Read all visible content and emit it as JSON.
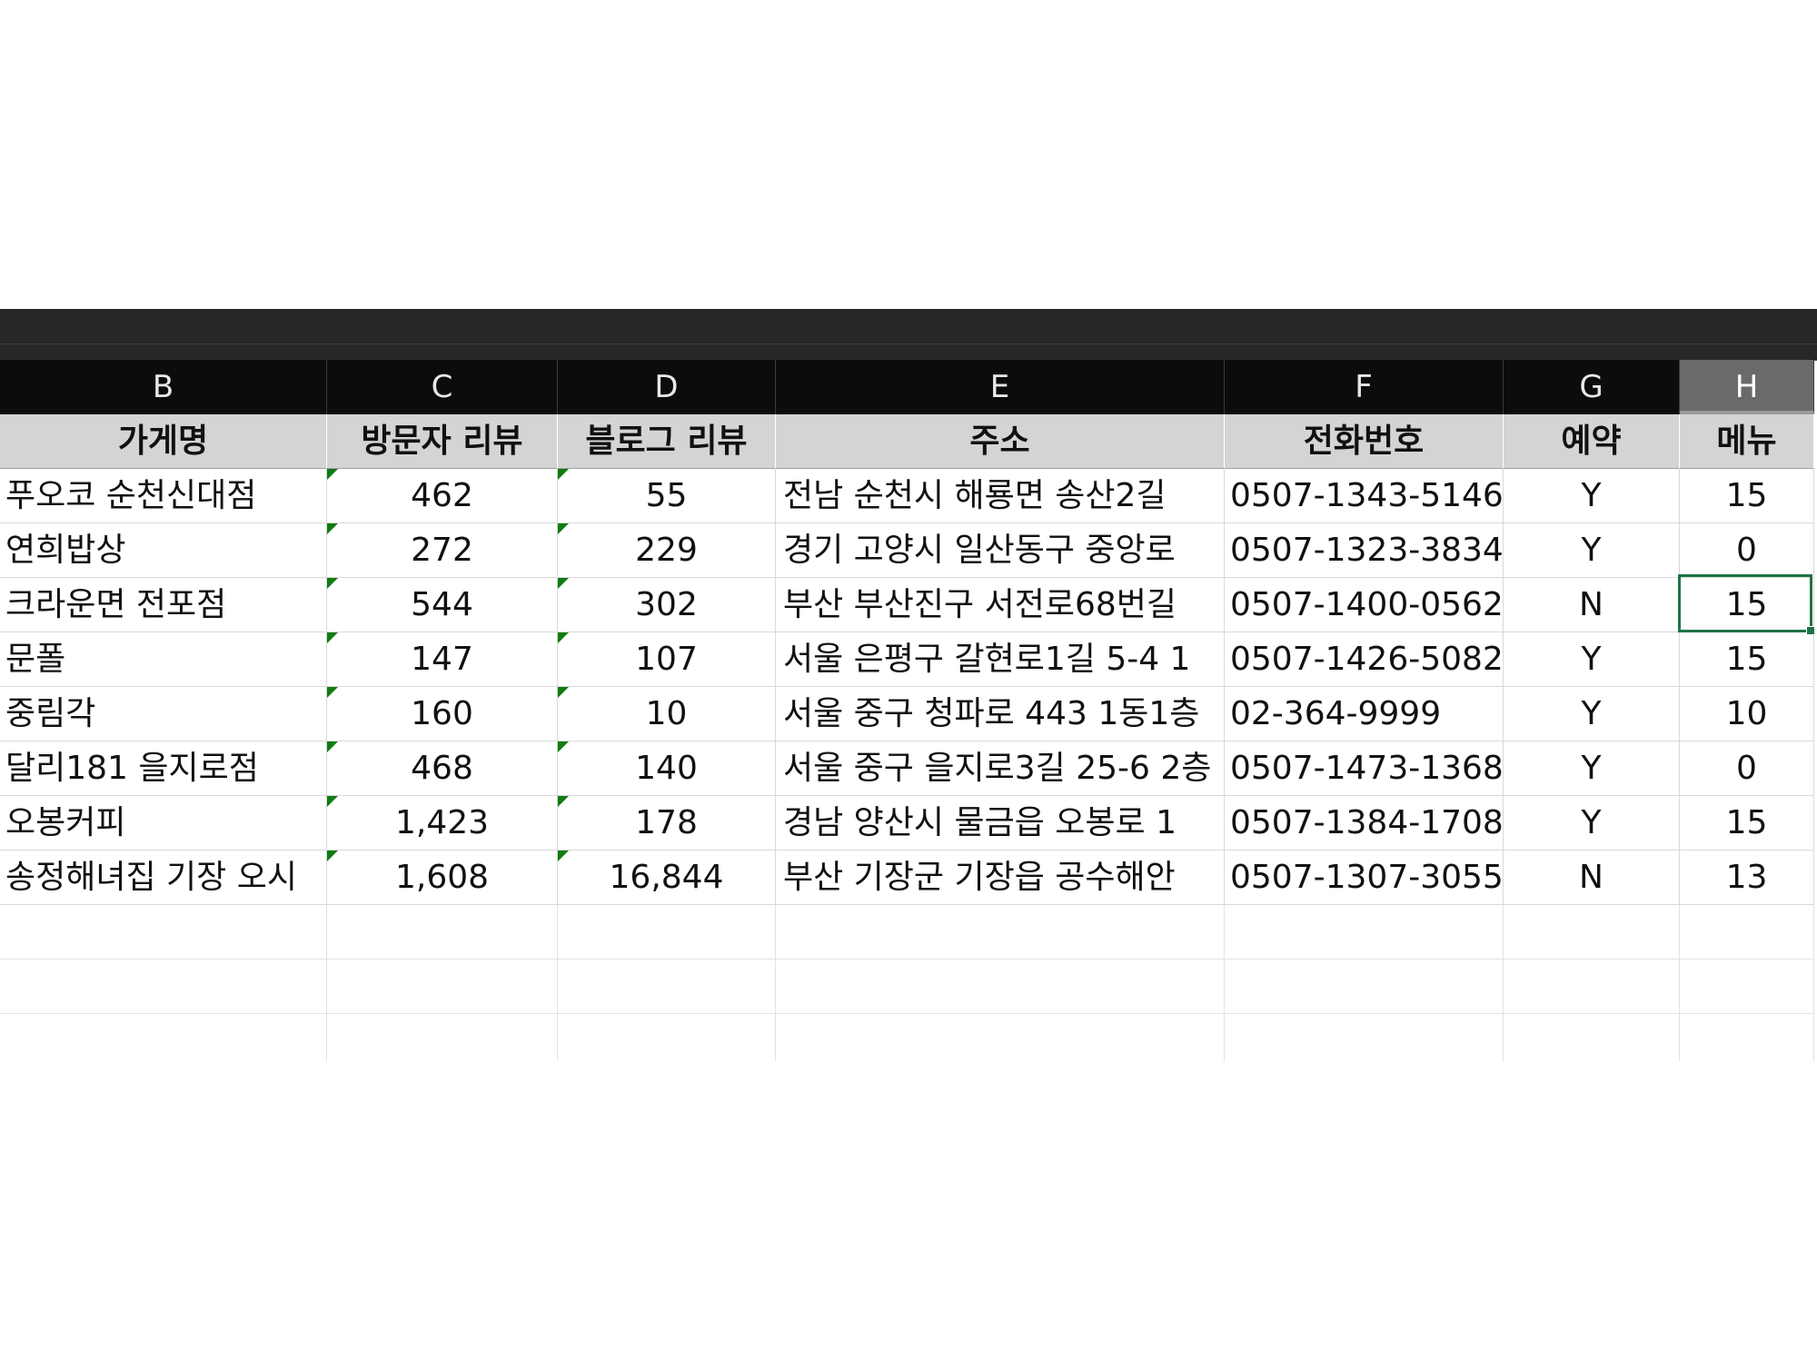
{
  "columns": [
    "B",
    "C",
    "D",
    "E",
    "F",
    "G",
    "H"
  ],
  "selected_column": "H",
  "headers": [
    "가게명",
    "방문자 리뷰",
    "블로그 리뷰",
    "주소",
    "전화번호",
    "예약",
    "메뉴"
  ],
  "rows": [
    {
      "name": "푸오코 순천신대점",
      "visitor": "462",
      "blog": "55",
      "address": "전남 순천시 해룡면 송산2길",
      "phone": "0507-1343-5146",
      "reservation": "Y",
      "menu": "15"
    },
    {
      "name": "연희밥상",
      "visitor": "272",
      "blog": "229",
      "address": "경기 고양시 일산동구 중앙로",
      "phone": "0507-1323-3834",
      "reservation": "Y",
      "menu": "0"
    },
    {
      "name": "크라운면 전포점",
      "visitor": "544",
      "blog": "302",
      "address": "부산 부산진구 서전로68번길",
      "phone": "0507-1400-0562",
      "reservation": "N",
      "menu": "15"
    },
    {
      "name": "문폴",
      "visitor": "147",
      "blog": "107",
      "address": "서울 은평구 갈현로1길 5-4 1",
      "phone": "0507-1426-5082",
      "reservation": "Y",
      "menu": "15"
    },
    {
      "name": "중림각",
      "visitor": "160",
      "blog": "10",
      "address": "서울 중구 청파로 443 1동1층",
      "phone": "02-364-9999",
      "reservation": "Y",
      "menu": "10"
    },
    {
      "name": "달리181 을지로점",
      "visitor": "468",
      "blog": "140",
      "address": "서울 중구 을지로3길 25-6 2층",
      "phone": "0507-1473-1368",
      "reservation": "Y",
      "menu": "0"
    },
    {
      "name": "오봉커피",
      "visitor": "1,423",
      "blog": "178",
      "address": "경남 양산시 물금읍 오봉로 1",
      "phone": "0507-1384-1708",
      "reservation": "Y",
      "menu": "15"
    },
    {
      "name": "송정해녀집 기장 오시",
      "visitor": "1,608",
      "blog": "16,844",
      "address": "부산 기장군 기장읍 공수해안",
      "phone": "0507-1307-3055",
      "reservation": "N",
      "menu": "13"
    }
  ],
  "active_cell": "H5",
  "colors": {
    "accent": "#217346",
    "number_marker": "#107c10"
  }
}
